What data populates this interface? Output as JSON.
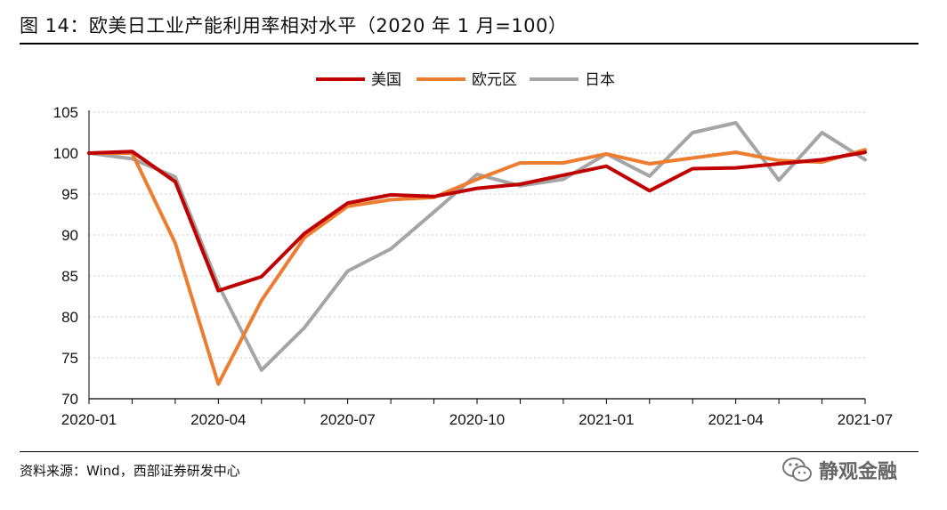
{
  "header": {
    "title": "图 14：欧美日工业产能利用率相对水平（2020 年 1 月=100）"
  },
  "footer": {
    "source": "资料来源：Wind，西部证券研发中心",
    "watermark": "静观金融",
    "watermark_icon": "wechat-icon"
  },
  "chart_data": {
    "type": "line",
    "x": [
      "2020-01",
      "2020-02",
      "2020-03",
      "2020-04",
      "2020-05",
      "2020-06",
      "2020-07",
      "2020-08",
      "2020-09",
      "2020-10",
      "2020-11",
      "2020-12",
      "2021-01",
      "2021-02",
      "2021-03",
      "2021-04",
      "2021-05",
      "2021-06",
      "2021-07"
    ],
    "x_tick_labels": [
      "2020-01",
      "2020-04",
      "2020-07",
      "2020-10",
      "2021-01",
      "2021-04",
      "2021-07"
    ],
    "ylim": [
      70,
      105
    ],
    "y_ticks": [
      70,
      75,
      80,
      85,
      90,
      95,
      100,
      105
    ],
    "grid": "horizontal dotted",
    "legend_position": "top",
    "series": [
      {
        "name": "美国",
        "color": "#c00000",
        "values": [
          100,
          100.2,
          96.5,
          83.2,
          84.9,
          90.2,
          93.9,
          94.9,
          94.7,
          95.7,
          96.2,
          97.3,
          98.4,
          95.4,
          98.1,
          98.2,
          98.7,
          99.2,
          100.1
        ]
      },
      {
        "name": "欧元区",
        "color": "#ed7d31",
        "values": [
          100,
          100,
          89,
          71.8,
          82,
          89.7,
          93.5,
          94.3,
          94.6,
          96.8,
          98.8,
          98.8,
          99.9,
          98.7,
          99.4,
          100.1,
          99.1,
          98.9,
          100.4
        ]
      },
      {
        "name": "日本",
        "color": "#a5a5a5",
        "values": [
          100,
          99.3,
          97.1,
          83.9,
          73.5,
          78.7,
          85.6,
          88.3,
          92.8,
          97.4,
          96,
          96.8,
          99.9,
          97.2,
          102.5,
          103.7,
          96.7,
          102.5,
          99.2
        ]
      }
    ]
  }
}
